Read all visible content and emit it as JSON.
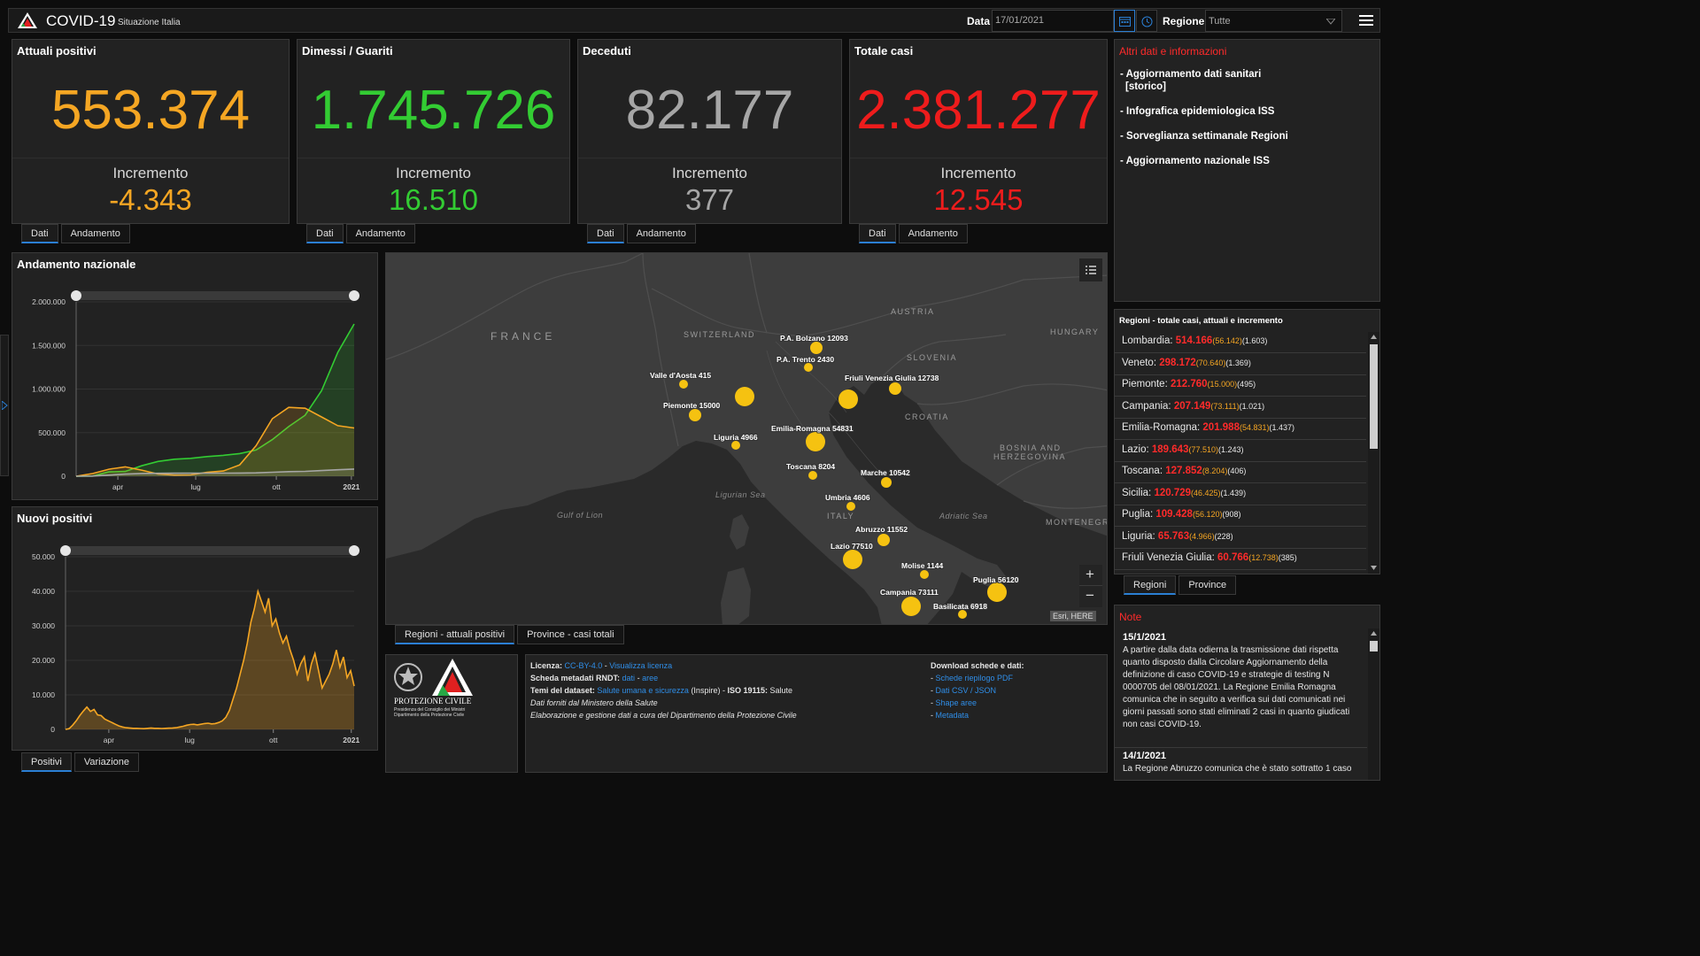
{
  "header": {
    "title": "COVID-19",
    "subtitle": "Situazione Italia",
    "date_label": "Data",
    "date_value": "17/01/2021",
    "region_label": "Regione",
    "region_value": "Tutte"
  },
  "colors": {
    "attuali": "#f5a623",
    "dimessi": "#33cc33",
    "deceduti": "#a6a6a6",
    "totale": "#ee1c1c",
    "accent": "#2b7fd4"
  },
  "cards": [
    {
      "title": "Attuali positivi",
      "value": "553.374",
      "inc_label": "Incremento",
      "inc_value": "-4.343"
    },
    {
      "title": "Dimessi / Guariti",
      "value": "1.745.726",
      "inc_label": "Incremento",
      "inc_value": "16.510"
    },
    {
      "title": "Deceduti",
      "value": "82.177",
      "inc_label": "Incremento",
      "inc_value": "377"
    },
    {
      "title": "Totale casi",
      "value": "2.381.277",
      "inc_label": "Incremento",
      "inc_value": "12.545"
    }
  ],
  "card_tabs": [
    "Dati",
    "Andamento"
  ],
  "info": {
    "title": "Altri dati e informazioni",
    "links": [
      "- Aggiornamento dati sanitari",
      "[storico]",
      "- Infografica epidemiologica ISS",
      "- Sorveglianza settimanale Regioni",
      "- Aggiornamento nazionale ISS"
    ]
  },
  "chart_titles": {
    "andamento": "Andamento nazionale",
    "nuovi": "Nuovi positivi"
  },
  "chart_tabs": [
    "Positivi",
    "Variazione"
  ],
  "chart_data": [
    {
      "type": "line",
      "title": "Andamento nazionale",
      "x": [
        "2020-02-24",
        "2020-03-15",
        "2020-04-01",
        "2020-04-20",
        "2020-05-15",
        "2020-06-15",
        "2020-07-15",
        "2020-08-15",
        "2020-09-15",
        "2020-10-01",
        "2020-10-15",
        "2020-11-01",
        "2020-11-15",
        "2020-11-25",
        "2020-12-01",
        "2020-12-15",
        "2021-01-01",
        "2021-01-17"
      ],
      "x_ticks": [
        "apr",
        "lug",
        "ott",
        "2021"
      ],
      "y_ticks": [
        "0",
        "500.000",
        "1.000.000",
        "1.500.000",
        "2.000.000"
      ],
      "ylim": [
        0,
        2000000
      ],
      "series": [
        {
          "color": "#33cc33",
          "values": [
            0,
            2500,
            50000,
            55000,
            120000,
            170000,
            195000,
            205000,
            225000,
            240000,
            260000,
            300000,
            420000,
            570000,
            700000,
            980000,
            1420000,
            1745726
          ]
        },
        {
          "color": "#f5a623",
          "values": [
            200,
            30000,
            80000,
            108000,
            70000,
            25000,
            13000,
            15000,
            45000,
            60000,
            130000,
            350000,
            660000,
            790000,
            780000,
            680000,
            580000,
            553374
          ]
        },
        {
          "color": "#a6a6a6",
          "values": [
            7,
            2000,
            13000,
            24000,
            31000,
            34000,
            35000,
            35400,
            35700,
            36000,
            36500,
            39000,
            46000,
            53000,
            56000,
            65000,
            74000,
            82177
          ]
        }
      ]
    },
    {
      "type": "area",
      "title": "Nuovi positivi",
      "x_ticks": [
        "apr",
        "lug",
        "ott",
        "2021"
      ],
      "y_ticks": [
        "0",
        "10.000",
        "20.000",
        "30.000",
        "40.000",
        "50.000"
      ],
      "ylim": [
        0,
        50000
      ],
      "series": [
        {
          "color": "#f5a623",
          "values": [
            0,
            200,
            1200,
            2500,
            4000,
            5300,
            6500,
            5200,
            5800,
            4200,
            4000,
            3000,
            2500,
            2000,
            1500,
            1000,
            700,
            500,
            400,
            300,
            300,
            250,
            200,
            300,
            400,
            300,
            300,
            250,
            300,
            350,
            400,
            500,
            700,
            900,
            1200,
            1400,
            1500,
            1300,
            1500,
            1700,
            1800,
            1600,
            1700,
            2000,
            2500,
            3500,
            5500,
            8800,
            12000,
            16000,
            20000,
            25000,
            31000,
            35000,
            40000,
            37000,
            34000,
            38000,
            30000,
            32000,
            28000,
            25000,
            27000,
            23000,
            20000,
            16000,
            19000,
            21000,
            14000,
            19000,
            22000,
            17000,
            12000,
            14000,
            16000,
            19000,
            23000,
            18000,
            21000,
            15000,
            17000,
            12545
          ]
        }
      ]
    }
  ],
  "map": {
    "countries": [
      "FRANCE",
      "SWITZERLAND",
      "AUSTRIA",
      "HUNGARY",
      "SLOVENIA",
      "CROATIA",
      "BOSNIA AND",
      "HERZEGOVINA",
      "MONTENEGRO",
      "ITALY"
    ],
    "seas": [
      "Ligurian Sea",
      "Gulf of Lion",
      "Adriatic Sea"
    ],
    "labels": [
      {
        "name": "P.A. Bolzano 12093",
        "r": 7
      },
      {
        "name": "P.A. Trento 2430",
        "r": 5
      },
      {
        "name": "Valle d'Aosta 415",
        "r": 5
      },
      {
        "name": "Friuli Venezia Giulia 12738",
        "r": 7
      },
      {
        "name": "Piemonte 15000",
        "r": 7
      },
      {
        "name": "Emilia-Romagna 54831",
        "r": 11
      },
      {
        "name": "Liguria 4966",
        "r": 5
      },
      {
        "name": "Toscana 8204",
        "r": 5
      },
      {
        "name": "Marche 10542",
        "r": 6
      },
      {
        "name": "Umbria 4606",
        "r": 5
      },
      {
        "name": "Abruzzo 11552",
        "r": 7
      },
      {
        "name": "Lazio 77510",
        "r": 11
      },
      {
        "name": "Molise 1144",
        "r": 5
      },
      {
        "name": "Puglia 56120",
        "r": 11
      },
      {
        "name": "Campania 73111",
        "r": 11
      },
      {
        "name": "Basilicata 6918",
        "r": 5
      }
    ],
    "extra_dots": [
      {
        "name": "Lombardia",
        "r": 11
      },
      {
        "name": "Veneto",
        "r": 11
      }
    ],
    "attribution": "Esri, HERE",
    "zoom_in": "+",
    "zoom_out": "−"
  },
  "map_tabs": [
    "Regioni - attuali positivi",
    "Province - casi totali"
  ],
  "regions_panel": {
    "title": "Regioni - totale casi, attuali e incremento",
    "rows": [
      {
        "name": "Lombardia:",
        "tot": "514.166",
        "act": "(56.142)",
        "inc": "(1.603)"
      },
      {
        "name": "Veneto:",
        "tot": "298.172",
        "act": "(70.640)",
        "inc": "(1.369)"
      },
      {
        "name": "Piemonte:",
        "tot": "212.760",
        "act": "(15.000)",
        "inc": "(495)"
      },
      {
        "name": "Campania:",
        "tot": "207.149",
        "act": "(73.111)",
        "inc": "(1.021)"
      },
      {
        "name": "Emilia-Romagna:",
        "tot": "201.988",
        "act": "(54.831)",
        "inc": "(1.437)"
      },
      {
        "name": "Lazio:",
        "tot": "189.643",
        "act": "(77.510)",
        "inc": "(1.243)"
      },
      {
        "name": "Toscana:",
        "tot": "127.852",
        "act": "(8.204)",
        "inc": "(406)"
      },
      {
        "name": "Sicilia:",
        "tot": "120.729",
        "act": "(46.425)",
        "inc": "(1.439)"
      },
      {
        "name": "Puglia:",
        "tot": "109.428",
        "act": "(56.120)",
        "inc": "(908)"
      },
      {
        "name": "Liguria:",
        "tot": "65.763",
        "act": "(4.966)",
        "inc": "(228)"
      },
      {
        "name": "Friuli Venezia Giulia:",
        "tot": "60.766",
        "act": "(12.738)",
        "inc": "(385)"
      }
    ],
    "tabs": [
      "Regioni",
      "Province"
    ]
  },
  "notes": {
    "title": "Note",
    "items": [
      {
        "date": "15/1/2021",
        "text": "A partire dalla data odierna la trasmissione dati rispetta quanto disposto dalla Circolare Aggiornamento della definizione di caso COVID-19 e strategie di testing N 0000705 del 08/01/2021. La Regione Emilia Romagna comunica che in seguito a verifica sui dati comunicati nei giorni passati sono stati eliminati 2 casi in quanto giudicati non casi COVID-19."
      },
      {
        "date": "14/1/2021",
        "text": "La Regione Abruzzo comunica che è stato sottratto 1 caso"
      }
    ]
  },
  "logo": {
    "org": "PROTEZIONE CIVILE",
    "line1": "Presidenza del Consiglio dei Ministri",
    "line2": "Dipartimento della Protezione Civile"
  },
  "credits": {
    "licenza_label": "Licenza:",
    "licenza_link": "CC-BY-4.0",
    "licenza_sep": " - ",
    "licenza_link2": "Visualizza licenza",
    "scheda_label": "Scheda metadati RNDT:",
    "scheda_link1": "dati",
    "scheda_sep": " - ",
    "scheda_link2": "aree",
    "temi_label": "Temi del dataset:",
    "temi_link": "Salute umana e sicurezza",
    "temi_rest": " (Inspire) - ",
    "iso_label": "ISO 19115:",
    "iso_value": " Salute",
    "line4": "Dati forniti dal Ministero della Salute",
    "line5": "Elaborazione e gestione dati a cura del Dipartimento della Protezione Civile",
    "download_title": "Download schede e dati:",
    "downloads": [
      "Schede riepilogo PDF",
      "Dati CSV / JSON",
      "Shape aree",
      "Metadata"
    ]
  }
}
